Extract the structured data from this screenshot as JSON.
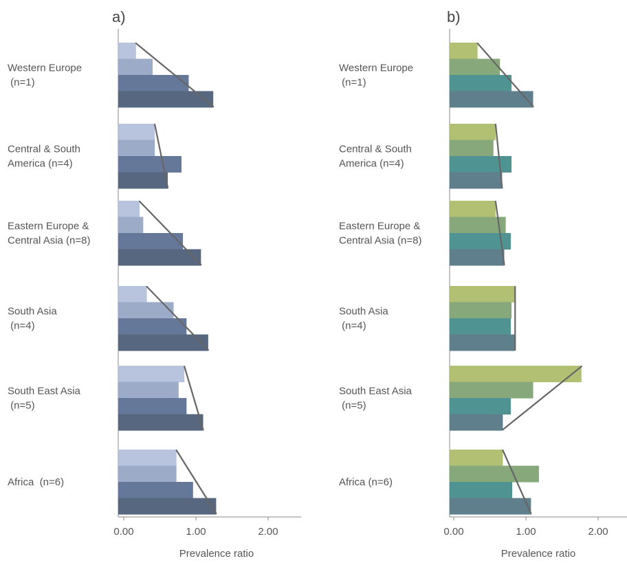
{
  "chart_data": [
    {
      "type": "bar",
      "orientation": "horizontal",
      "panel_label": "a)",
      "categories": [
        [
          "Western Europe",
          " (n=1)"
        ],
        [
          "Central & South",
          "America (n=4)"
        ],
        [
          "Eastern Europe &",
          "Central Asia (n=8)"
        ],
        [
          "South Asia",
          " (n=4)"
        ],
        [
          "South East Asia",
          " (n=5)"
        ],
        [
          "Africa  (n=6)"
        ]
      ],
      "series_values": [
        [
          0.17,
          0.4,
          0.9,
          1.24
        ],
        [
          0.43,
          0.43,
          0.8,
          0.61
        ],
        [
          0.22,
          0.27,
          0.82,
          1.07
        ],
        [
          0.32,
          0.69,
          0.87,
          1.17
        ],
        [
          0.84,
          0.76,
          0.87,
          1.1
        ],
        [
          0.73,
          0.73,
          0.96,
          1.28
        ]
      ],
      "colors": [
        "#b8c3de",
        "#9cacc8",
        "#66789a",
        "#56677f"
      ],
      "trend_line_color": "#666666",
      "x_ticks": [
        "0.00",
        "1.00",
        "2.00"
      ],
      "x_tick_values": [
        0,
        1,
        2
      ],
      "xlabel": "Prevalence ratio",
      "xlim": [
        -0.1,
        2.5
      ]
    },
    {
      "type": "bar",
      "orientation": "horizontal",
      "panel_label": "b)",
      "categories": [
        [
          "Western Europe",
          " (n=1)"
        ],
        [
          "Central & South",
          "America (n=4)"
        ],
        [
          "Eastern Europe &",
          "Central Asia (n=8)"
        ],
        [
          "South Asia",
          " (n=4)"
        ],
        [
          "South East Asia",
          " (n=5)"
        ],
        [
          "Africa (n=6)"
        ]
      ],
      "series_values": [
        [
          0.33,
          0.64,
          0.8,
          1.1
        ],
        [
          0.58,
          0.55,
          0.8,
          0.67
        ],
        [
          0.58,
          0.72,
          0.79,
          0.7
        ],
        [
          0.85,
          0.8,
          0.79,
          0.85
        ],
        [
          1.77,
          1.1,
          0.79,
          0.68
        ],
        [
          0.68,
          1.18,
          0.81,
          1.07
        ]
      ],
      "colors": [
        "#b2c074",
        "#87a87a",
        "#4f9393",
        "#607f8c"
      ],
      "trend_line_color": "#666666",
      "x_ticks": [
        "0.00",
        "1.00",
        "2.00"
      ],
      "x_tick_values": [
        0,
        1,
        2
      ],
      "xlabel": "Prevalence ratio",
      "xlim": [
        -0.1,
        2.4
      ]
    }
  ]
}
